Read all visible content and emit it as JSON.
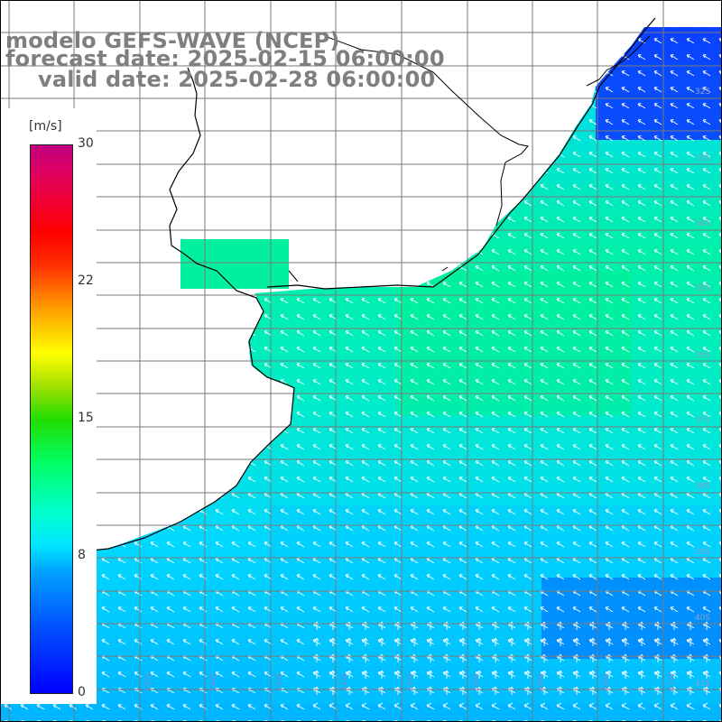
{
  "title": {
    "line1": "modelo GEFS-WAVE (NCEP)",
    "line2": "forecast date: 2025-02-15 06:00:00",
    "line3": "valid date: 2025-02-28 06:00:00"
  },
  "legend": {
    "unit": "[m/s]",
    "ticks": [
      "30",
      "22",
      "15",
      "8",
      "0"
    ]
  },
  "lat_labels": [
    "32S",
    "33S",
    "34S",
    "35S",
    "36S",
    "37S",
    "38S",
    "39S",
    "40S",
    "41S"
  ],
  "lon_labels": [
    "57W",
    "56W",
    "55W",
    "54W",
    "53W",
    "52W",
    "51W",
    "50W",
    "49W",
    "48W",
    "47W"
  ],
  "colors": {
    "scale_0": "#0000ff",
    "scale_8": "#00e5ff",
    "scale_15": "#22dd00",
    "scale_22": "#ff3000",
    "scale_30": "#c00080",
    "grid": "#7a7a7a",
    "coast": "#000000",
    "arrows": "#ffffff",
    "title_text": "#7f7f7f"
  }
}
